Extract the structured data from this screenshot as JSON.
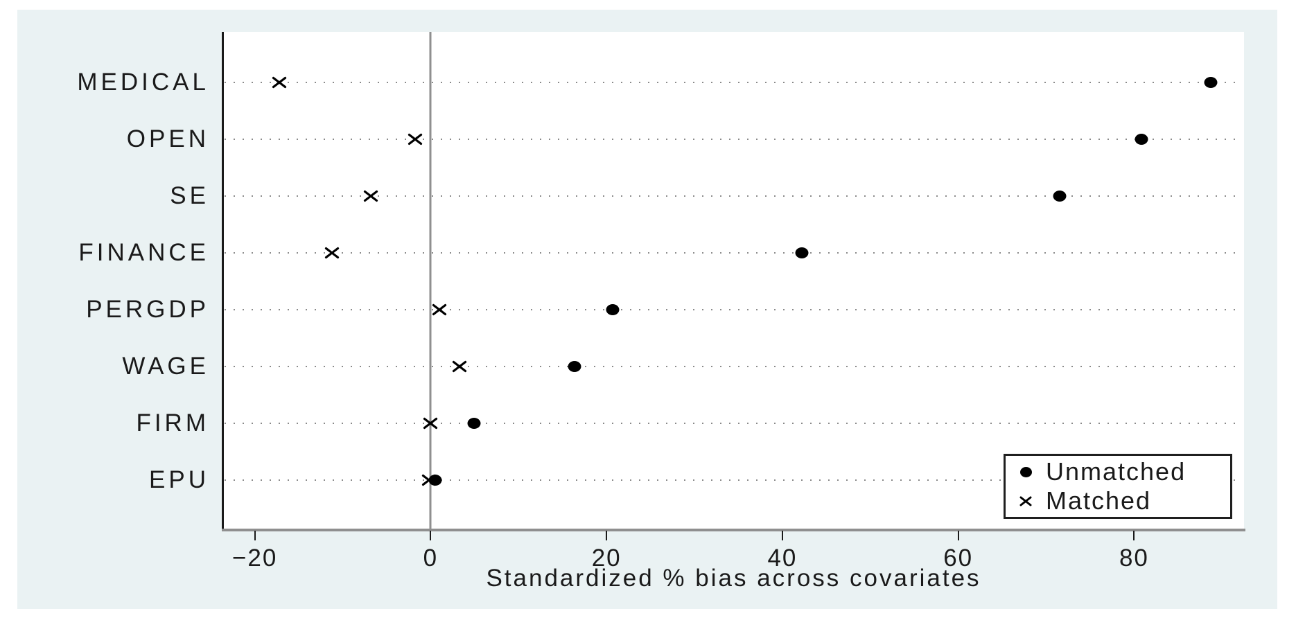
{
  "figure": {
    "background": "#ffffff",
    "canvas_background": "#eaf2f3",
    "plot_background": "#ffffff",
    "axis_color": "#1a1a1a",
    "reference_line_color": "#8f8f8f",
    "grid_dot_color": "#8a8a8a",
    "marker_color": "#000000"
  },
  "chart_data": {
    "type": "scatter",
    "subtype": "horizontal-dot-plot",
    "title": "",
    "xlabel": "Standardized % bias across covariates",
    "ylabel": "",
    "categories": [
      "MEDICAL",
      "OPEN",
      "SE",
      "FINANCE",
      "PERGDP",
      "WAGE",
      "FIRM",
      "EPU"
    ],
    "series": [
      {
        "name": "Unmatched",
        "marker": "dot",
        "color": "#000000",
        "values": [
          88.7,
          80.8,
          71.5,
          42.2,
          20.7,
          16.4,
          4.9,
          0.5
        ]
      },
      {
        "name": "Matched",
        "marker": "x",
        "color": "#000000",
        "values": [
          -17.2,
          -1.8,
          -6.8,
          -11.2,
          1.0,
          3.3,
          0.0,
          -0.2
        ]
      }
    ],
    "x_tick_labels": [
      "−20",
      "0",
      "20",
      "40",
      "60",
      "80"
    ],
    "x_tick_values": [
      -20,
      0,
      20,
      40,
      60,
      80
    ],
    "xlim": [
      -23.6,
      92.5
    ],
    "grid": "horizontal dotted line per category",
    "reference_line_x": 0,
    "legend_position": "inside bottom-right",
    "legend_entries": [
      "Unmatched",
      "Matched"
    ]
  }
}
